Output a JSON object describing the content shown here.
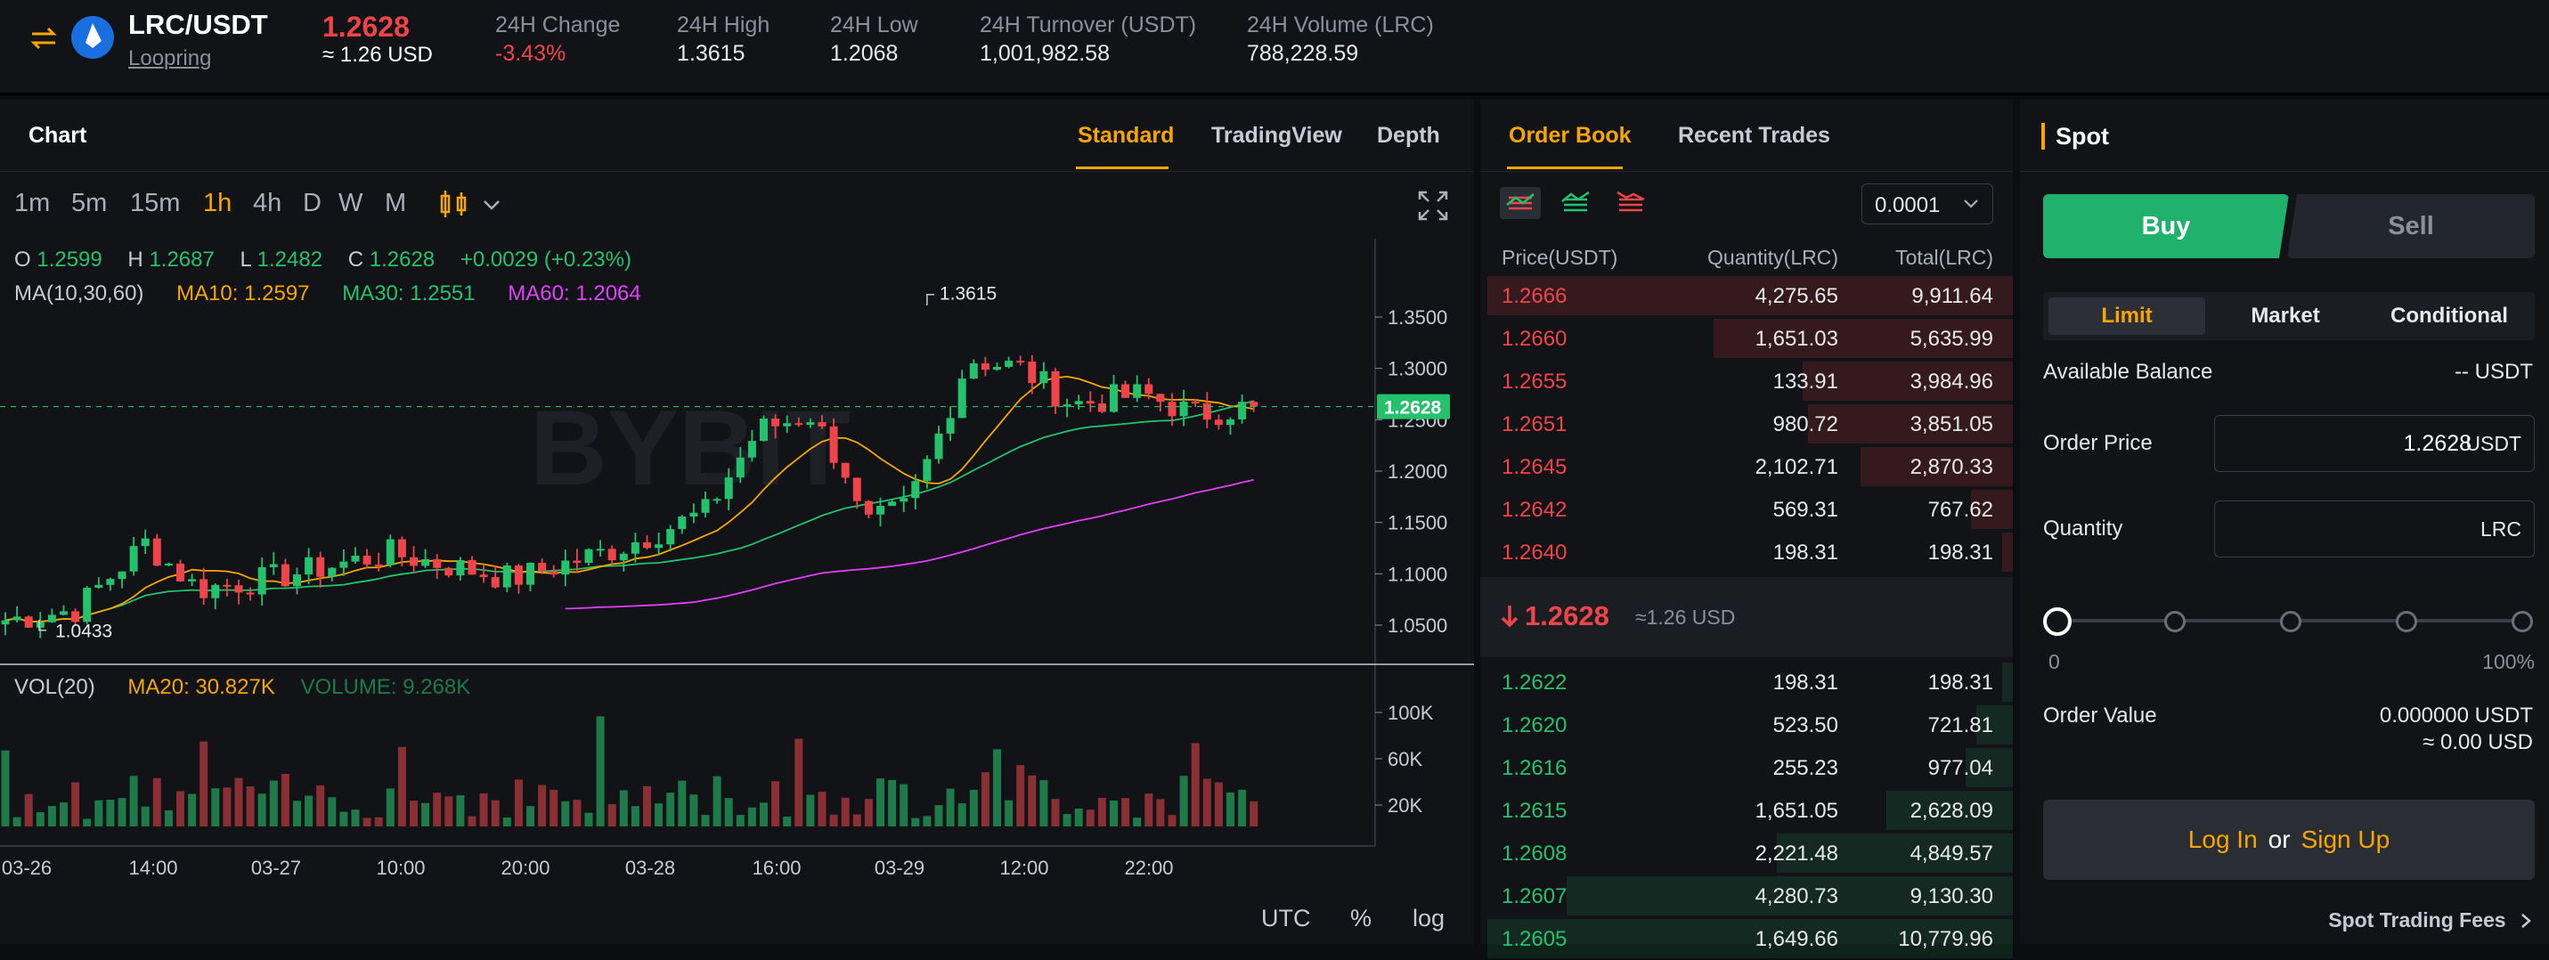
{
  "header": {
    "pair": "LRC/USDT",
    "coin_name": "Loopring",
    "last_price": "1.2628",
    "last_price_usd": "≈ 1.26 USD",
    "stats": [
      {
        "label": "24H Change",
        "value": "-3.43%"
      },
      {
        "label": "24H High",
        "value": "1.3615"
      },
      {
        "label": "24H Low",
        "value": "1.2068"
      },
      {
        "label": "24H Turnover (USDT)",
        "value": "1,001,982.58"
      },
      {
        "label": "24H Volume (LRC)",
        "value": "788,228.59"
      }
    ]
  },
  "chart_panel": {
    "title": "Chart",
    "tabs": [
      "Standard",
      "TradingView",
      "Depth"
    ],
    "active_tab": "Standard",
    "timeframes": [
      "1m",
      "5m",
      "15m",
      "1h",
      "4h",
      "D",
      "W",
      "M"
    ],
    "active_timeframe": "1h",
    "ohlc": {
      "o_label": "O",
      "o": "1.2599",
      "h_label": "H",
      "h": "1.2687",
      "l_label": "L",
      "l": "1.2482",
      "c_label": "C",
      "c": "1.2628",
      "change": "+0.0029 (+0.23%)"
    },
    "ma": {
      "label": "MA(10,30,60)",
      "ma10": "MA10: 1.2597",
      "ma30": "MA30: 1.2551",
      "ma60": "MA60: 1.2064"
    },
    "vol": {
      "label": "VOL(20)",
      "ma20": "MA20: 30.827K",
      "volume": "VOLUME: 9.268K"
    },
    "watermark": "BYBIT",
    "footer": [
      "UTC",
      "%",
      "log"
    ]
  },
  "chart_data": {
    "type": "candlestick",
    "price_ticks": [
      "1.3500",
      "1.3000",
      "1.2500",
      "1.2000",
      "1.1500",
      "1.1000",
      "1.0500"
    ],
    "price_tick_values": [
      1.35,
      1.3,
      1.25,
      1.2,
      1.15,
      1.1,
      1.05
    ],
    "current_price": "1.2628",
    "high_marker": "1.3615",
    "low_marker": "1.0433",
    "volume_ticks": [
      "100K",
      "60K",
      "20K"
    ],
    "volume_tick_values": [
      100000,
      60000,
      20000
    ],
    "x_labels": [
      "03-26",
      "14:00",
      "03-27",
      "10:00",
      "20:00",
      "03-28",
      "16:00",
      "03-29",
      "12:00",
      "22:00"
    ]
  },
  "order_book": {
    "tabs": [
      "Order Book",
      "Recent Trades"
    ],
    "active_tab": "Order Book",
    "precision": "0.0001",
    "columns": [
      "Price(USDT)",
      "Quantity(LRC)",
      "Total(LRC)"
    ],
    "asks": [
      {
        "price": "1.2666",
        "qty": "4,275.65",
        "total": "9,911.64",
        "depth": 1.0
      },
      {
        "price": "1.2660",
        "qty": "1,651.03",
        "total": "5,635.99",
        "depth": 0.57
      },
      {
        "price": "1.2655",
        "qty": "133.91",
        "total": "3,984.96",
        "depth": 0.4
      },
      {
        "price": "1.2651",
        "qty": "980.72",
        "total": "3,851.05",
        "depth": 0.39
      },
      {
        "price": "1.2645",
        "qty": "2,102.71",
        "total": "2,870.33",
        "depth": 0.29
      },
      {
        "price": "1.2642",
        "qty": "569.31",
        "total": "767.62",
        "depth": 0.08
      },
      {
        "price": "1.2640",
        "qty": "198.31",
        "total": "198.31",
        "depth": 0.02
      }
    ],
    "mid_price": "1.2628",
    "mid_usd": "≈1.26 USD",
    "bids": [
      {
        "price": "1.2622",
        "qty": "198.31",
        "total": "198.31",
        "depth": 0.02
      },
      {
        "price": "1.2620",
        "qty": "523.50",
        "total": "721.81",
        "depth": 0.07
      },
      {
        "price": "1.2616",
        "qty": "255.23",
        "total": "977.04",
        "depth": 0.09
      },
      {
        "price": "1.2615",
        "qty": "1,651.05",
        "total": "2,628.09",
        "depth": 0.24
      },
      {
        "price": "1.2608",
        "qty": "2,221.48",
        "total": "4,849.57",
        "depth": 0.45
      },
      {
        "price": "1.2607",
        "qty": "4,280.73",
        "total": "9,130.30",
        "depth": 0.85
      },
      {
        "price": "1.2605",
        "qty": "1,649.66",
        "total": "10,779.96",
        "depth": 1.0
      }
    ]
  },
  "trade_panel": {
    "title": "Spot",
    "buy": "Buy",
    "sell": "Sell",
    "order_types": [
      "Limit",
      "Market",
      "Conditional"
    ],
    "active_order_type": "Limit",
    "available_balance_label": "Available Balance",
    "available_balance_value": "-- USDT",
    "order_price_label": "Order Price",
    "order_price_value": "1.2628",
    "order_price_unit": "USDT",
    "quantity_label": "Quantity",
    "quantity_unit": "LRC",
    "slider_min": "0",
    "slider_max": "100%",
    "slider_value": 0,
    "order_value_label": "Order Value",
    "order_value": "0.000000 USDT",
    "order_value_usd": "≈ 0.00 USD",
    "login": "Log In",
    "or": "or",
    "signup": "Sign Up",
    "fees_link": "Spot Trading Fees"
  },
  "colors": {
    "accent": "#f7a600",
    "up": "#25c26e",
    "down": "#ef454a",
    "bg": "#111316"
  }
}
